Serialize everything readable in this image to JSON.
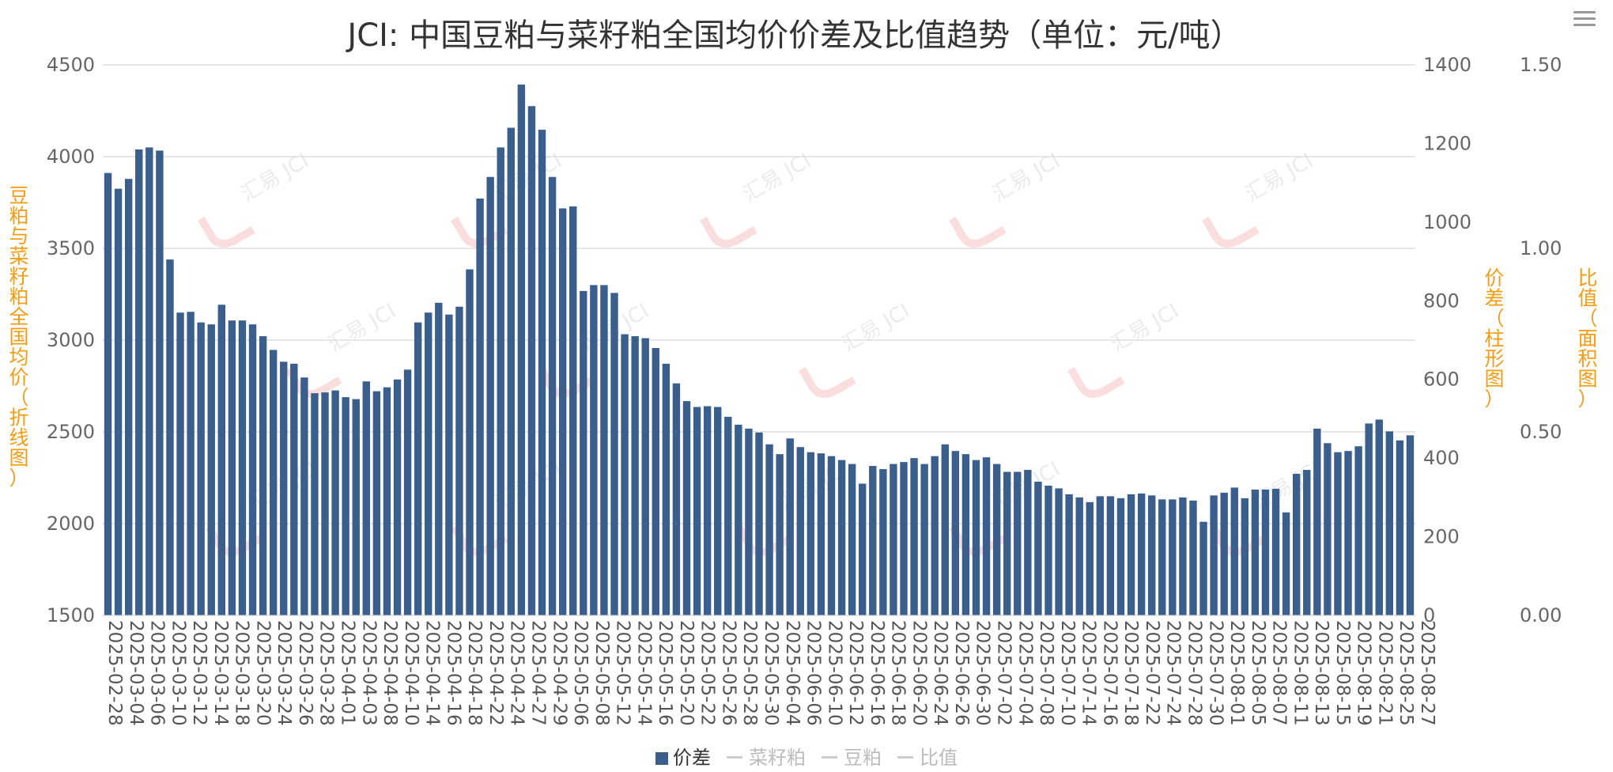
{
  "menu": {
    "icon": "hamburger-menu-icon"
  },
  "chart_data": {
    "type": "bar",
    "title": "JCI: 中国豆粕与菜籽粕全国均价价差及比值趋势（单位：元/吨）",
    "y_left_label": "豆粕与菜籽粕全国均价（折线图）",
    "y_right_label": "价差（柱形图）",
    "y_right2_label": "比值（面积图）",
    "y_left_range": [
      1500,
      4500
    ],
    "y_left_ticks": [
      "1500",
      "2000",
      "2500",
      "3000",
      "3500",
      "4000",
      "4500"
    ],
    "y_right_range": [
      0,
      1400
    ],
    "y_right_ticks": [
      "0",
      "200",
      "400",
      "600",
      "800",
      "1000",
      "1200",
      "1400"
    ],
    "y_right2_range": [
      0,
      1.5
    ],
    "y_right2_ticks": [
      "0.00",
      "0.50",
      "1.00",
      "1.50"
    ],
    "grid": true,
    "legend_position": "bottom",
    "watermark": "汇易 JCI",
    "x_tick_labels": [
      "2025-02-28",
      "2025-03-04",
      "2025-03-06",
      "2025-03-10",
      "2025-03-12",
      "2025-03-14",
      "2025-03-18",
      "2025-03-20",
      "2025-03-24",
      "2025-03-26",
      "2025-03-28",
      "2025-04-01",
      "2025-04-03",
      "2025-04-08",
      "2025-04-10",
      "2025-04-14",
      "2025-04-16",
      "2025-04-18",
      "2025-04-22",
      "2025-04-24",
      "2025-04-27",
      "2025-04-29",
      "2025-05-06",
      "2025-05-08",
      "2025-05-12",
      "2025-05-14",
      "2025-05-16",
      "2025-05-20",
      "2025-05-22",
      "2025-05-26",
      "2025-05-28",
      "2025-05-30",
      "2025-06-04",
      "2025-06-06",
      "2025-06-10",
      "2025-06-12",
      "2025-06-16",
      "2025-06-18",
      "2025-06-20",
      "2025-06-24",
      "2025-06-26",
      "2025-06-30",
      "2025-07-02",
      "2025-07-04",
      "2025-07-08",
      "2025-07-10",
      "2025-07-14",
      "2025-07-16",
      "2025-07-18",
      "2025-07-22",
      "2025-07-24",
      "2025-07-28",
      "2025-07-30",
      "2025-08-01",
      "2025-08-05",
      "2025-08-07",
      "2025-08-11",
      "2025-08-13",
      "2025-08-15",
      "2025-08-19",
      "2025-08-21",
      "2025-08-25",
      "2025-08-27"
    ],
    "legend": [
      {
        "name": "价差",
        "active": true,
        "color": "#3a5f8c"
      },
      {
        "name": "菜籽粕",
        "active": false,
        "color": "#cccccc"
      },
      {
        "name": "豆粕",
        "active": false,
        "color": "#cccccc"
      },
      {
        "name": "比值",
        "active": false,
        "color": "#cccccc"
      }
    ],
    "series": [
      {
        "name": "价差",
        "axis": "right",
        "color": "#3a5f8c",
        "values": [
          1125,
          1085,
          1110,
          1185,
          1190,
          1182,
          905,
          770,
          772,
          745,
          740,
          790,
          750,
          750,
          740,
          710,
          675,
          645,
          640,
          605,
          565,
          567,
          572,
          555,
          550,
          595,
          570,
          580,
          600,
          625,
          745,
          770,
          795,
          765,
          785,
          880,
          1060,
          1115,
          1190,
          1240,
          1350,
          1295,
          1235,
          1115,
          1035,
          1040,
          825,
          840,
          840,
          820,
          715,
          710,
          705,
          680,
          640,
          590,
          545,
          530,
          532,
          530,
          505,
          485,
          475,
          465,
          435,
          410,
          450,
          428,
          415,
          412,
          405,
          395,
          385,
          335,
          380,
          372,
          385,
          390,
          400,
          385,
          405,
          435,
          418,
          410,
          395,
          402,
          385,
          365,
          365,
          370,
          340,
          330,
          323,
          308,
          300,
          288,
          303,
          303,
          298,
          308,
          310,
          305,
          295,
          295,
          300,
          292,
          238,
          305,
          312,
          325,
          298,
          320,
          320,
          322,
          262,
          360,
          370,
          475,
          438,
          415,
          418,
          430,
          488,
          498,
          468,
          445,
          458
        ]
      }
    ]
  }
}
